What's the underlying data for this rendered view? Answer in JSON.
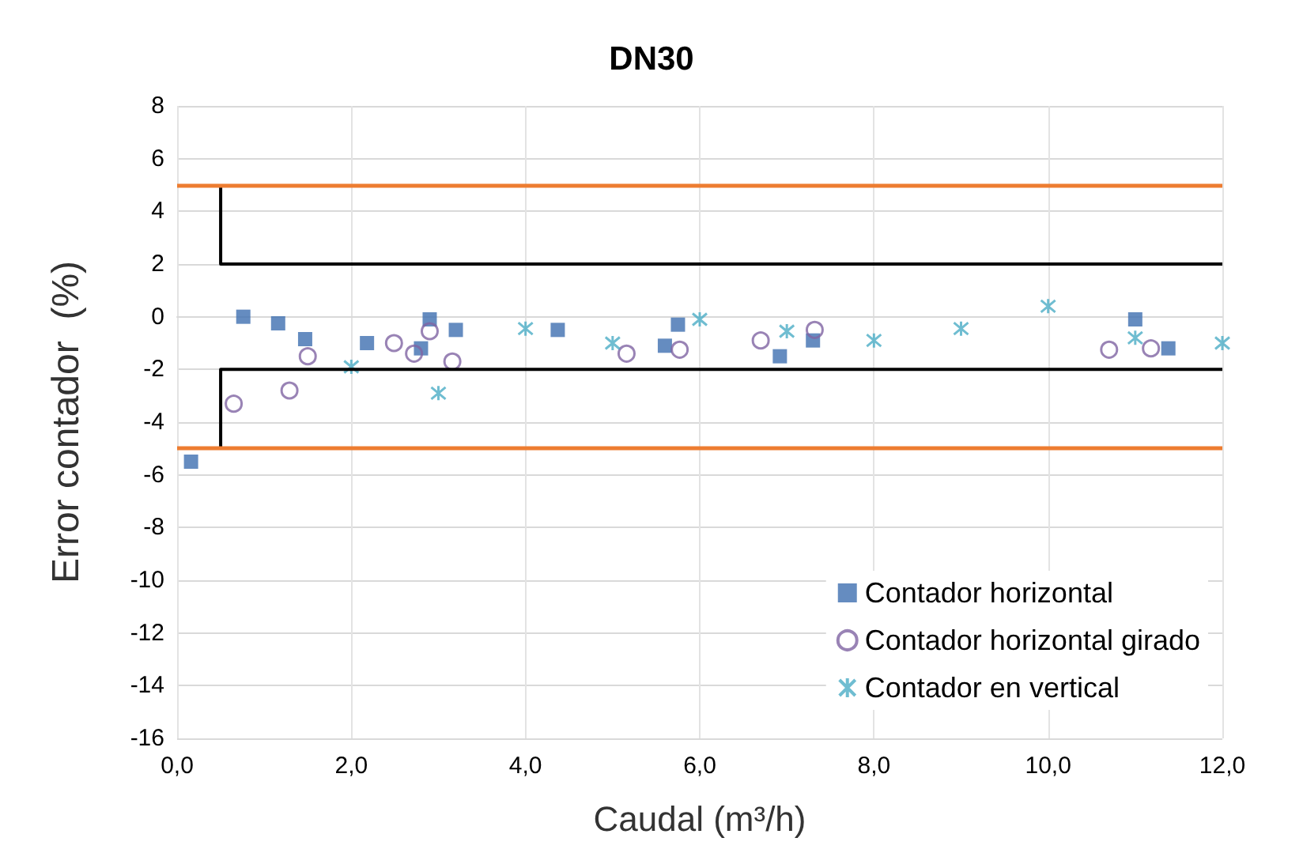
{
  "chart_data": {
    "type": "scatter",
    "title": "DN30",
    "xlabel": "Caudal (m³/h)",
    "ylabel": "Error contador  (%)",
    "xlim": [
      0,
      12
    ],
    "xticks": [
      {
        "value": 0,
        "label": "0,0"
      },
      {
        "value": 2,
        "label": "2,0"
      },
      {
        "value": 4,
        "label": "4,0"
      },
      {
        "value": 6,
        "label": "6,0"
      },
      {
        "value": 8,
        "label": "8,0"
      },
      {
        "value": 10,
        "label": "10,0"
      },
      {
        "value": 12,
        "label": "12,0"
      }
    ],
    "ylim": [
      -16,
      8
    ],
    "yticks": [
      -16,
      -14,
      -12,
      -10,
      -8,
      -6,
      -4,
      -2,
      0,
      2,
      4,
      6,
      8
    ],
    "grid": true,
    "legend": "bottom right",
    "ref_lines": [
      {
        "axis": "y",
        "value": 5,
        "color": "#ed7d31"
      },
      {
        "axis": "y",
        "value": -5,
        "color": "#ed7d31"
      }
    ],
    "series": [
      {
        "name": "Contador horizontal",
        "color": "#3f6fb0",
        "marker": "square",
        "x": [
          0.16,
          0.76,
          1.16,
          1.47,
          2.18,
          2.8,
          2.9,
          3.2,
          4.37,
          5.6,
          5.75,
          6.92,
          7.3,
          11.0,
          11.38
        ],
        "values": [
          -5.5,
          0,
          -0.25,
          -0.85,
          -1.0,
          -1.2,
          -0.1,
          -0.5,
          -0.5,
          -1.1,
          -0.3,
          -1.5,
          -0.9,
          -0.1,
          -1.2
        ]
      },
      {
        "name": "Contador horizontal girado",
        "color": "#8064a2",
        "marker": "circle",
        "x": [
          0.65,
          1.29,
          1.5,
          2.49,
          2.72,
          2.9,
          3.16,
          5.16,
          5.77,
          6.7,
          7.32,
          10.7,
          11.18
        ],
        "values": [
          -3.3,
          -2.8,
          -1.5,
          -1.0,
          -1.4,
          -0.55,
          -1.7,
          -1.4,
          -1.25,
          -0.9,
          -0.5,
          -1.25,
          -1.2
        ]
      },
      {
        "name": "Contador en vertical",
        "color": "#4bacc6",
        "marker": "cross",
        "x": [
          2,
          3,
          4,
          5,
          6,
          7,
          8,
          9,
          10,
          11,
          12
        ],
        "values": [
          -1.9,
          -2.9,
          -0.45,
          -1.0,
          -0.1,
          -0.55,
          -0.9,
          -0.45,
          0.4,
          -0.8,
          -1.0
        ]
      },
      {
        "type": "line",
        "color": "#000000",
        "marker": "none",
        "line_style": "solid",
        "x": [
          0.5,
          0.5,
          12
        ],
        "values": [
          5,
          2,
          2
        ]
      },
      {
        "type": "line",
        "color": "#000000",
        "marker": "none",
        "line_style": "solid",
        "x": [
          0.5,
          0.5,
          12
        ],
        "values": [
          -5,
          -2,
          -2
        ]
      }
    ]
  }
}
